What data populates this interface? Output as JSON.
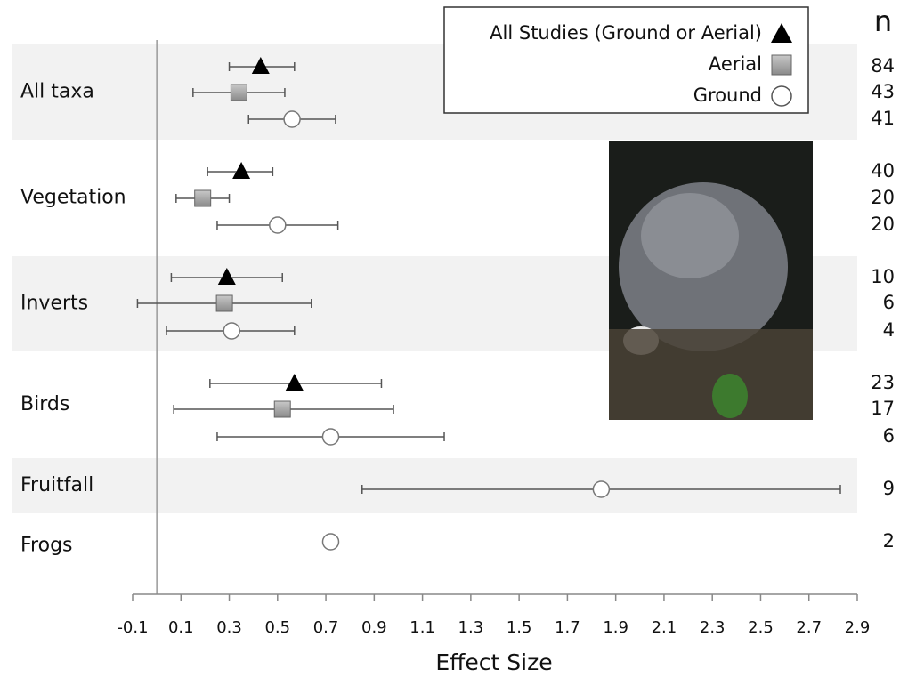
{
  "chart_data": {
    "type": "forest",
    "x_label": "Effect Size",
    "n_header": "n",
    "categories": [
      "All taxa",
      "Vegetation",
      "Inverts",
      "Birds",
      "Fruitfall",
      "Frogs"
    ],
    "xlim": [
      -0.1,
      2.9
    ],
    "xticks": [
      -0.1,
      0.1,
      0.3,
      0.5,
      0.7,
      0.9,
      1.1,
      1.3,
      1.5,
      1.7,
      1.9,
      2.1,
      2.3,
      2.5,
      2.7,
      2.9
    ],
    "legend_position": "upper right",
    "series": [
      {
        "name": "All Studies (Ground or Aerial)",
        "color": "#000000",
        "marker": "triangle",
        "values": [
          0.43,
          0.35,
          0.29,
          0.57,
          null,
          null
        ],
        "low": [
          0.3,
          0.21,
          0.06,
          0.22,
          null,
          null
        ],
        "high": [
          0.57,
          0.48,
          0.52,
          0.93,
          null,
          null
        ],
        "n": [
          84,
          40,
          10,
          23,
          null,
          null
        ]
      },
      {
        "name": "Aerial",
        "color": "#999999",
        "marker": "square",
        "values": [
          0.34,
          0.19,
          0.28,
          0.52,
          null,
          null
        ],
        "low": [
          0.15,
          0.08,
          -0.08,
          0.07,
          null,
          null
        ],
        "high": [
          0.53,
          0.3,
          0.64,
          0.98,
          null,
          null
        ],
        "n": [
          43,
          20,
          6,
          17,
          null,
          null
        ]
      },
      {
        "name": "Ground",
        "color": "#ffffff",
        "marker": "circle",
        "values": [
          0.56,
          0.5,
          0.31,
          0.72,
          1.84,
          0.72
        ],
        "low": [
          0.38,
          0.25,
          0.04,
          0.25,
          0.85,
          null
        ],
        "high": [
          0.74,
          0.75,
          0.57,
          1.19,
          2.83,
          null
        ],
        "n": [
          41,
          20,
          4,
          6,
          9,
          2
        ]
      }
    ]
  }
}
